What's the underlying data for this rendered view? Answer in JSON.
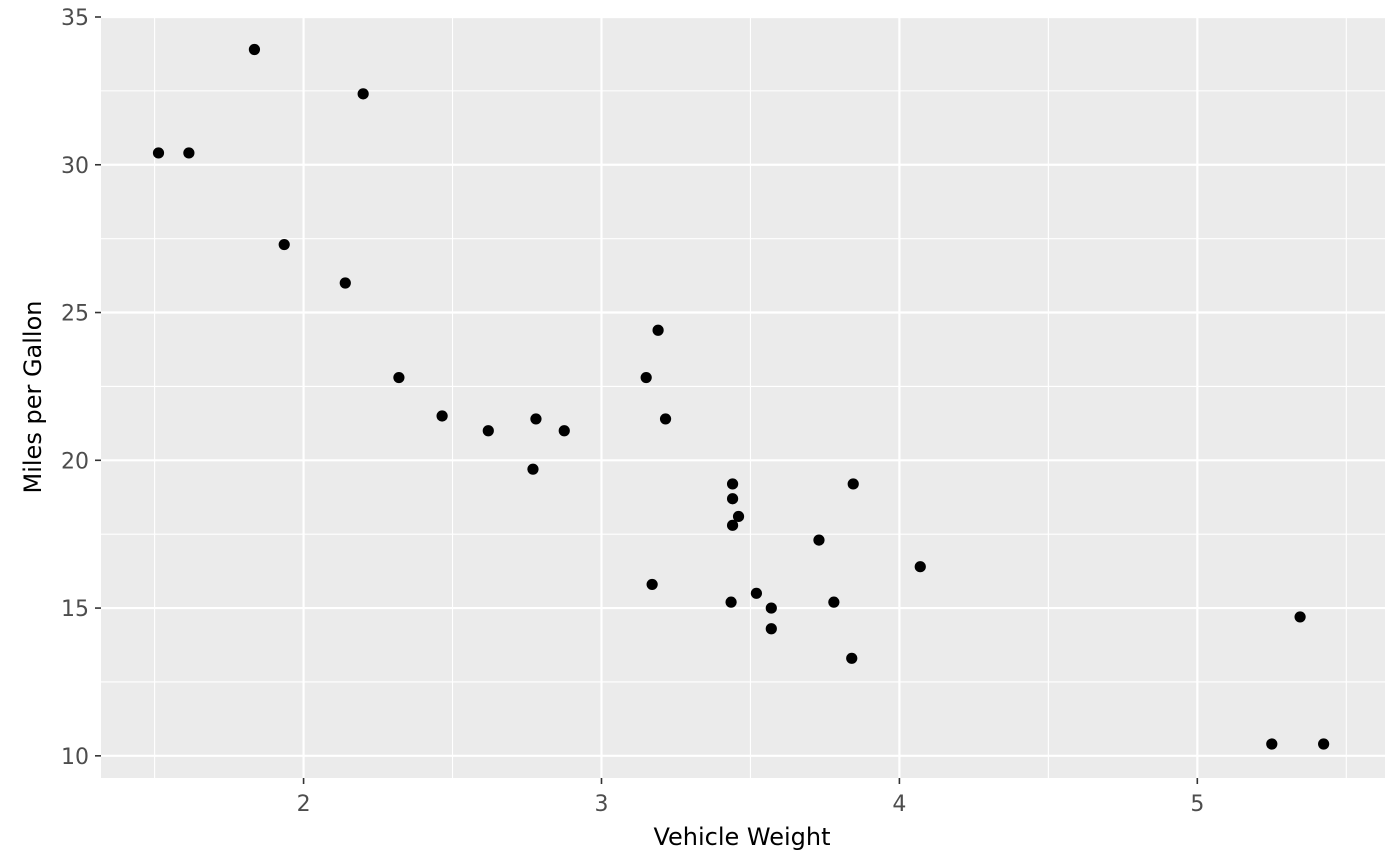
{
  "chart_data": {
    "type": "scatter",
    "title": "",
    "xlabel": "Vehicle Weight",
    "ylabel": "Miles per Gallon",
    "xlim": [
      1.32,
      5.63
    ],
    "ylim": [
      9.25,
      35.0
    ],
    "x_ticks": [
      2,
      3,
      4,
      5
    ],
    "x_tick_labels": [
      "2",
      "3",
      "4",
      "5"
    ],
    "x_minor_ticks": [
      1.5,
      2.5,
      3.5,
      4.5,
      5.5
    ],
    "y_ticks": [
      10,
      15,
      20,
      25,
      30,
      35
    ],
    "y_tick_labels": [
      "10",
      "15",
      "20",
      "25",
      "30",
      "35"
    ],
    "y_minor_ticks": [
      12.5,
      17.5,
      22.5,
      27.5,
      32.5
    ],
    "grid": true,
    "panel_background": "#ebebeb",
    "grid_color": "#ffffff",
    "point_color": "#000000",
    "points": [
      {
        "x": 1.513,
        "y": 30.4
      },
      {
        "x": 1.615,
        "y": 30.4
      },
      {
        "x": 1.835,
        "y": 33.9
      },
      {
        "x": 1.935,
        "y": 27.3
      },
      {
        "x": 2.14,
        "y": 26.0
      },
      {
        "x": 2.2,
        "y": 32.4
      },
      {
        "x": 2.32,
        "y": 22.8
      },
      {
        "x": 2.465,
        "y": 21.5
      },
      {
        "x": 2.62,
        "y": 21.0
      },
      {
        "x": 2.77,
        "y": 19.7
      },
      {
        "x": 2.78,
        "y": 21.4
      },
      {
        "x": 2.875,
        "y": 21.0
      },
      {
        "x": 3.15,
        "y": 22.8
      },
      {
        "x": 3.17,
        "y": 15.8
      },
      {
        "x": 3.19,
        "y": 24.4
      },
      {
        "x": 3.215,
        "y": 21.4
      },
      {
        "x": 3.435,
        "y": 15.2
      },
      {
        "x": 3.44,
        "y": 19.2
      },
      {
        "x": 3.44,
        "y": 18.7
      },
      {
        "x": 3.44,
        "y": 17.8
      },
      {
        "x": 3.46,
        "y": 18.1
      },
      {
        "x": 3.52,
        "y": 15.5
      },
      {
        "x": 3.57,
        "y": 15.0
      },
      {
        "x": 3.57,
        "y": 14.3
      },
      {
        "x": 3.73,
        "y": 17.3
      },
      {
        "x": 3.78,
        "y": 15.2
      },
      {
        "x": 3.84,
        "y": 13.3
      },
      {
        "x": 3.845,
        "y": 19.2
      },
      {
        "x": 4.07,
        "y": 16.4
      },
      {
        "x": 5.25,
        "y": 10.4
      },
      {
        "x": 5.345,
        "y": 14.7
      },
      {
        "x": 5.424,
        "y": 10.4
      }
    ]
  }
}
